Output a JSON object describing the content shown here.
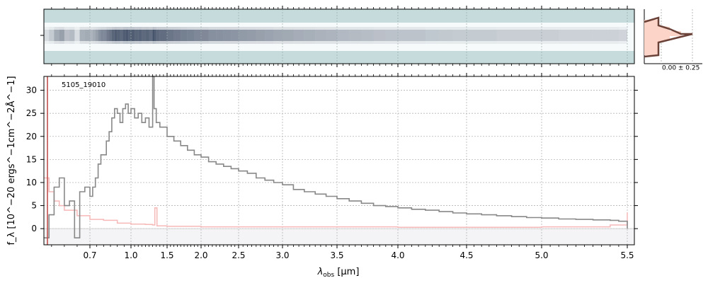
{
  "chart_data": {
    "type": "line",
    "object_label": "5105_19010",
    "xlabel_main": "λ",
    "xlabel_sub": "obs",
    "xlabel_unit": " [μm]",
    "ylabel": "f_λ [10^−20 ergs^−1cm^−2Å^−1]",
    "x_ticks": [
      0.7,
      1.0,
      1.5,
      2.0,
      2.5,
      3.0,
      3.5,
      4.0,
      4.5,
      5.0,
      5.5
    ],
    "x_tick_labels": [
      "0.7",
      "1.0",
      "1.5",
      "2.0",
      "2.5",
      "3.0",
      "3.5",
      "4.0",
      "4.5",
      "5.0",
      "5.5"
    ],
    "y_ticks": [
      0,
      5,
      10,
      15,
      20,
      25,
      30
    ],
    "y_tick_labels": [
      "0",
      "5",
      "10",
      "15",
      "20",
      "25",
      "30"
    ],
    "xlim": [
      0.52,
      5.53
    ],
    "ylim": [
      -3.5,
      33
    ],
    "x_scale": "nonlinear (dispersion-like, compressed at long wavelengths)",
    "grid": true,
    "profile_label": "0.00 ± 0.25",
    "colors": {
      "flux": "#888888",
      "error": "#f7b8b8",
      "profile": "#6b4238",
      "profile_fill": "#fcd5c8",
      "redline": "#c0504d",
      "spec2d_bg": "#c6dcdc",
      "spec2d_trace": "#2c3a55"
    },
    "series": [
      {
        "role": "flux",
        "x": [
          0.52,
          0.54,
          0.56,
          0.58,
          0.6,
          0.62,
          0.64,
          0.66,
          0.68,
          0.7,
          0.72,
          0.74,
          0.76,
          0.78,
          0.8,
          0.82,
          0.84,
          0.86,
          0.88,
          0.9,
          0.92,
          0.94,
          0.96,
          0.98,
          1.0,
          1.05,
          1.1,
          1.15,
          1.2,
          1.25,
          1.3,
          1.32,
          1.35,
          1.4,
          1.5,
          1.6,
          1.7,
          1.8,
          1.9,
          2.0,
          2.1,
          2.2,
          2.3,
          2.4,
          2.5,
          2.6,
          2.7,
          2.8,
          2.9,
          3.0,
          3.1,
          3.2,
          3.3,
          3.4,
          3.5,
          3.6,
          3.7,
          3.8,
          3.9,
          4.0,
          4.1,
          4.2,
          4.3,
          4.4,
          4.5,
          4.6,
          4.7,
          4.8,
          4.9,
          5.0,
          5.1,
          5.2,
          5.3,
          5.4,
          5.45,
          5.5
        ],
        "y": [
          -2,
          3,
          9,
          11,
          5,
          6,
          -2,
          8,
          9,
          7,
          9,
          11,
          14,
          16,
          16,
          19,
          21,
          24,
          26,
          25,
          23,
          26,
          27,
          25,
          26,
          24,
          25,
          23,
          24,
          22,
          33,
          26,
          23,
          22,
          20,
          19,
          18,
          17,
          16,
          15.5,
          14.5,
          14,
          13.5,
          13,
          12.5,
          12,
          11,
          10.5,
          10,
          9.5,
          8.5,
          8,
          7.5,
          7,
          6.5,
          6,
          5.5,
          5,
          4.8,
          4.5,
          4.2,
          4,
          3.7,
          3.4,
          3.2,
          3.0,
          2.8,
          2.6,
          2.4,
          2.3,
          2.1,
          2.0,
          1.9,
          1.8,
          1.6,
          0
        ]
      },
      {
        "role": "error",
        "x": [
          0.52,
          0.54,
          0.56,
          0.58,
          0.6,
          0.65,
          0.7,
          0.8,
          0.9,
          1.0,
          1.2,
          1.3,
          1.33,
          1.36,
          1.5,
          2.0,
          3.0,
          4.0,
          5.0,
          5.4,
          5.5
        ],
        "y": [
          11,
          8,
          6,
          5,
          4,
          2.8,
          2,
          1.8,
          1.2,
          1.0,
          0.9,
          0.8,
          4.5,
          0.6,
          0.5,
          0.4,
          0.4,
          0.3,
          0.4,
          0.8,
          3.5
        ]
      }
    ]
  }
}
